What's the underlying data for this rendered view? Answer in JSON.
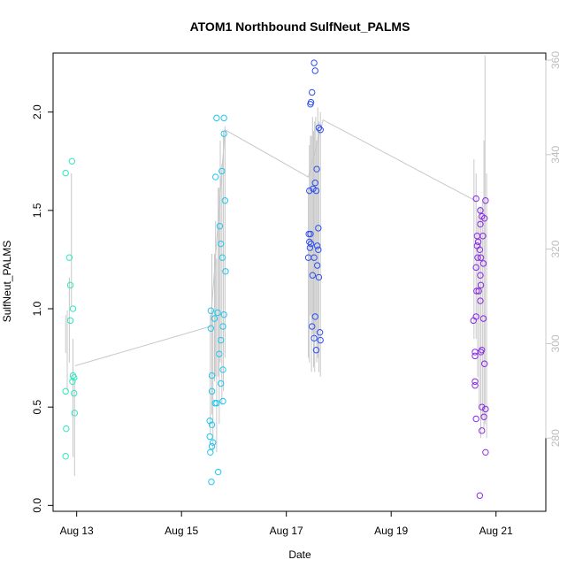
{
  "chart_data": {
    "type": "scatter",
    "title": "ATOM1 Northbound SulfNeut_PALMS",
    "xlabel": "Date",
    "ylabel": "SulfNeut_PALMS",
    "xlim": [
      12.55,
      21.95
    ],
    "ylim": [
      -0.03,
      2.3
    ],
    "x_ticks": [
      {
        "value": 13,
        "label": "Aug 13"
      },
      {
        "value": 15,
        "label": "Aug 15"
      },
      {
        "value": 17,
        "label": "Aug 17"
      },
      {
        "value": 19,
        "label": "Aug 19"
      },
      {
        "value": 21,
        "label": "Aug 21"
      }
    ],
    "y_ticks": [
      0.0,
      0.5,
      1.0,
      1.5,
      2.0
    ],
    "y_tick_labels": [
      "0.0",
      "0.5",
      "1.0",
      "1.5",
      "2.0"
    ],
    "y2lim": [
      264.5,
      361.5
    ],
    "y2_ticks": [
      280,
      300,
      320,
      340,
      360
    ],
    "y2_tick_labels": [
      "280",
      "300",
      "320",
      "340",
      "360"
    ],
    "colors": {
      "series_1": "#2fe8c0",
      "series_2": "#1ec8f0",
      "series_3": "#2f4ff0",
      "series_4": "#8a2be8",
      "trend_line": "#c8c8c8",
      "right_axis": "#c8c8c8"
    },
    "series": [
      {
        "color": "#2fe8c0",
        "points": [
          [
            12.79,
            1.69
          ],
          [
            12.86,
            1.26
          ],
          [
            12.88,
            1.12
          ],
          [
            12.88,
            0.94
          ],
          [
            12.91,
            1.75
          ],
          [
            12.93,
            1.0
          ],
          [
            12.93,
            0.66
          ],
          [
            12.95,
            0.65
          ],
          [
            12.92,
            0.63
          ],
          [
            12.79,
            0.58
          ],
          [
            12.95,
            0.57
          ],
          [
            12.96,
            0.47
          ],
          [
            12.8,
            0.39
          ],
          [
            12.79,
            0.25
          ]
        ]
      },
      {
        "color": "#1ec8f0",
        "points": [
          [
            15.67,
            1.97
          ],
          [
            15.81,
            1.97
          ],
          [
            15.81,
            1.89
          ],
          [
            15.65,
            1.67
          ],
          [
            15.77,
            1.7
          ],
          [
            15.83,
            1.55
          ],
          [
            15.73,
            1.42
          ],
          [
            15.75,
            1.33
          ],
          [
            15.78,
            1.26
          ],
          [
            15.84,
            1.19
          ],
          [
            15.56,
            0.99
          ],
          [
            15.69,
            0.98
          ],
          [
            15.81,
            0.97
          ],
          [
            15.63,
            0.95
          ],
          [
            15.56,
            0.9
          ],
          [
            15.79,
            0.91
          ],
          [
            15.75,
            0.84
          ],
          [
            15.72,
            0.77
          ],
          [
            15.79,
            0.69
          ],
          [
            15.58,
            0.66
          ],
          [
            15.75,
            0.62
          ],
          [
            15.58,
            0.58
          ],
          [
            15.64,
            0.52
          ],
          [
            15.67,
            0.52
          ],
          [
            15.79,
            0.53
          ],
          [
            15.54,
            0.43
          ],
          [
            15.58,
            0.41
          ],
          [
            15.54,
            0.35
          ],
          [
            15.6,
            0.32
          ],
          [
            15.58,
            0.3
          ],
          [
            15.55,
            0.27
          ],
          [
            15.7,
            0.17
          ],
          [
            15.57,
            0.12
          ]
        ]
      },
      {
        "color": "#2f4ff0",
        "points": [
          [
            17.53,
            2.25
          ],
          [
            17.55,
            2.21
          ],
          [
            17.49,
            2.1
          ],
          [
            17.47,
            2.05
          ],
          [
            17.46,
            2.04
          ],
          [
            17.62,
            1.92
          ],
          [
            17.65,
            1.91
          ],
          [
            17.58,
            1.71
          ],
          [
            17.44,
            1.6
          ],
          [
            17.55,
            1.64
          ],
          [
            17.51,
            1.61
          ],
          [
            17.57,
            1.6
          ],
          [
            17.61,
            1.41
          ],
          [
            17.43,
            1.38
          ],
          [
            17.46,
            1.38
          ],
          [
            17.44,
            1.34
          ],
          [
            17.47,
            1.33
          ],
          [
            17.45,
            1.31
          ],
          [
            17.59,
            1.32
          ],
          [
            17.61,
            1.3
          ],
          [
            17.42,
            1.26
          ],
          [
            17.53,
            1.26
          ],
          [
            17.59,
            1.22
          ],
          [
            17.5,
            1.17
          ],
          [
            17.62,
            1.16
          ],
          [
            17.55,
            0.96
          ],
          [
            17.49,
            0.91
          ],
          [
            17.64,
            0.88
          ],
          [
            17.53,
            0.85
          ],
          [
            17.65,
            0.84
          ],
          [
            17.57,
            0.79
          ]
        ]
      },
      {
        "color": "#8a2be8",
        "points": [
          [
            20.62,
            1.56
          ],
          [
            20.8,
            1.55
          ],
          [
            20.7,
            1.5
          ],
          [
            20.78,
            1.46
          ],
          [
            20.73,
            1.47
          ],
          [
            20.7,
            1.43
          ],
          [
            20.64,
            1.37
          ],
          [
            20.75,
            1.37
          ],
          [
            20.66,
            1.34
          ],
          [
            20.64,
            1.32
          ],
          [
            20.69,
            1.3
          ],
          [
            20.71,
            1.26
          ],
          [
            20.65,
            1.26
          ],
          [
            20.76,
            1.23
          ],
          [
            20.62,
            1.21
          ],
          [
            20.7,
            1.17
          ],
          [
            20.71,
            1.12
          ],
          [
            20.63,
            1.09
          ],
          [
            20.67,
            1.09
          ],
          [
            20.7,
            1.04
          ],
          [
            20.62,
            0.96
          ],
          [
            20.76,
            0.95
          ],
          [
            20.57,
            0.94
          ],
          [
            20.73,
            0.79
          ],
          [
            20.6,
            0.78
          ],
          [
            20.71,
            0.78
          ],
          [
            20.6,
            0.76
          ],
          [
            20.78,
            0.72
          ],
          [
            20.6,
            0.63
          ],
          [
            20.6,
            0.61
          ],
          [
            20.73,
            0.5
          ],
          [
            20.8,
            0.49
          ],
          [
            20.77,
            0.45
          ],
          [
            20.62,
            0.44
          ],
          [
            20.73,
            0.38
          ],
          [
            20.8,
            0.27
          ],
          [
            20.69,
            0.05
          ]
        ]
      }
    ],
    "trend_line": [
      [
        12.97,
        0.71
      ],
      [
        15.55,
        0.91
      ],
      [
        15.83,
        1.91
      ],
      [
        17.42,
        1.67
      ],
      [
        17.7,
        1.96
      ],
      [
        20.6,
        1.55
      ]
    ],
    "right_axis_ranges": [
      {
        "x": 12.79,
        "y2": [
          298,
          306
        ]
      },
      {
        "x": 12.82,
        "y2": [
          290,
          307
        ]
      },
      {
        "x": 12.86,
        "y2": [
          296,
          314
        ]
      },
      {
        "x": 12.9,
        "y2": [
          308,
          336
        ]
      },
      {
        "x": 12.93,
        "y2": [
          276,
          301
        ]
      },
      {
        "x": 12.96,
        "y2": [
          272,
          292
        ]
      },
      {
        "x": 15.55,
        "y2": [
          281,
          306
        ]
      },
      {
        "x": 15.58,
        "y2": [
          285,
          319
        ]
      },
      {
        "x": 15.6,
        "y2": [
          277,
          307
        ]
      },
      {
        "x": 15.63,
        "y2": [
          292,
          319
        ]
      },
      {
        "x": 15.65,
        "y2": [
          293,
          326
        ]
      },
      {
        "x": 15.67,
        "y2": [
          277,
          318
        ]
      },
      {
        "x": 15.7,
        "y2": [
          293,
          333
        ]
      },
      {
        "x": 15.72,
        "y2": [
          283,
          333
        ]
      },
      {
        "x": 15.74,
        "y2": [
          296,
          343
        ]
      },
      {
        "x": 15.77,
        "y2": [
          287,
          338
        ]
      },
      {
        "x": 15.8,
        "y2": [
          290,
          345
        ]
      },
      {
        "x": 15.83,
        "y2": [
          297,
          346
        ]
      },
      {
        "x": 17.42,
        "y2": [
          297,
          333
        ]
      },
      {
        "x": 17.44,
        "y2": [
          296,
          342
        ]
      },
      {
        "x": 17.46,
        "y2": [
          306,
          344
        ]
      },
      {
        "x": 17.48,
        "y2": [
          294,
          344
        ]
      },
      {
        "x": 17.5,
        "y2": [
          302,
          348
        ]
      },
      {
        "x": 17.52,
        "y2": [
          295,
          345
        ]
      },
      {
        "x": 17.54,
        "y2": [
          294,
          347
        ]
      },
      {
        "x": 17.56,
        "y2": [
          302,
          348
        ]
      },
      {
        "x": 17.58,
        "y2": [
          296,
          343
        ]
      },
      {
        "x": 17.6,
        "y2": [
          297,
          350
        ]
      },
      {
        "x": 17.62,
        "y2": [
          294,
          347
        ]
      },
      {
        "x": 17.65,
        "y2": [
          293,
          349
        ]
      },
      {
        "x": 20.58,
        "y2": [
          301,
          339
        ]
      },
      {
        "x": 20.62,
        "y2": [
          301,
          336
        ]
      },
      {
        "x": 20.65,
        "y2": [
          293,
          327
        ]
      },
      {
        "x": 20.68,
        "y2": [
          286,
          329
        ]
      },
      {
        "x": 20.71,
        "y2": [
          280,
          329
        ]
      },
      {
        "x": 20.74,
        "y2": [
          284,
          330
        ]
      },
      {
        "x": 20.77,
        "y2": [
          282,
          343
        ]
      },
      {
        "x": 20.79,
        "y2": [
          283,
          361
        ]
      },
      {
        "x": 20.82,
        "y2": [
          280,
          336
        ]
      }
    ]
  }
}
